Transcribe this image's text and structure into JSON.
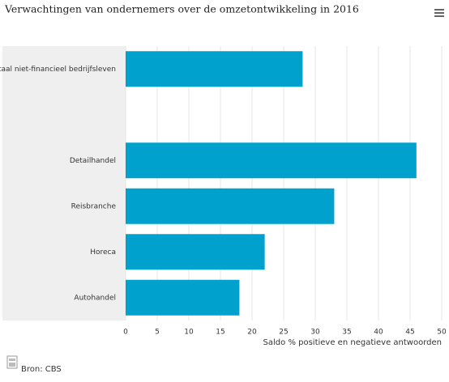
{
  "chart_data": {
    "type": "bar",
    "orientation": "horizontal",
    "title": "Verwachtingen van ondernemers over de omzetontwikkeling in 2016",
    "categories": [
      "Totaal niet-financieel bedrijfsleven",
      null,
      "Detailhandel",
      "Reisbranche",
      "Horeca",
      "Autohandel"
    ],
    "values": [
      28,
      null,
      46,
      33,
      22,
      18
    ],
    "color": "#00a1cd",
    "xlabel": "Saldo % positieve en negatieve antwoorden",
    "xlim": [
      0,
      50
    ],
    "xticks": [
      0,
      5,
      10,
      15,
      20,
      25,
      30,
      35,
      40,
      45,
      50
    ],
    "grid": true,
    "source": "Bron: CBS"
  }
}
